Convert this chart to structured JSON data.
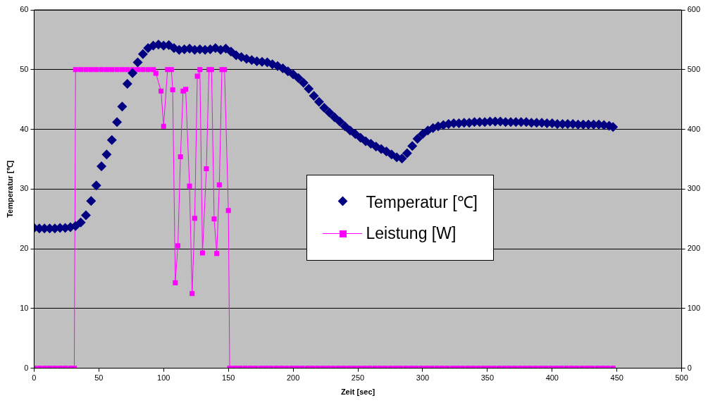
{
  "chart_data": {
    "type": "scatter",
    "xlabel": "Zeit [sec]",
    "ylabel": "Temperatur [℃]",
    "xlim": [
      0,
      500
    ],
    "xticks": [
      0,
      50,
      100,
      150,
      200,
      250,
      300,
      350,
      400,
      450,
      500
    ],
    "ylim": [
      0,
      60
    ],
    "yticks": [
      0,
      10,
      20,
      30,
      40,
      50,
      60
    ],
    "y2lim": [
      0,
      600
    ],
    "y2ticks": [
      0,
      100,
      200,
      300,
      400,
      500,
      600
    ],
    "grid": "y",
    "legend": "right",
    "series": [
      {
        "name": "Temperatur [℃]",
        "marker": "diamond",
        "color": "#000080",
        "x": [
          0,
          4,
          8,
          12,
          16,
          20,
          24,
          28,
          32,
          36,
          40,
          44,
          48,
          52,
          56,
          60,
          64,
          68,
          72,
          76,
          80,
          84,
          88,
          92,
          96,
          100,
          104,
          108,
          112,
          116,
          120,
          124,
          128,
          132,
          136,
          140,
          144,
          148,
          152,
          156,
          160,
          164,
          168,
          172,
          176,
          180,
          184,
          188,
          192,
          196,
          200,
          204,
          208,
          212,
          216,
          220,
          224,
          228,
          232,
          236,
          240,
          244,
          248,
          252,
          256,
          260,
          264,
          268,
          272,
          276,
          280,
          284,
          288,
          292,
          296,
          300,
          304,
          308,
          312,
          316,
          320,
          324,
          328,
          332,
          336,
          340,
          344,
          348,
          352,
          356,
          360,
          364,
          368,
          372,
          376,
          380,
          384,
          388,
          392,
          396,
          400,
          404,
          408,
          412,
          416,
          420,
          424,
          428,
          432,
          436,
          440,
          444,
          447
        ],
        "values": [
          23.5,
          23.4,
          23.4,
          23.4,
          23.4,
          23.5,
          23.5,
          23.6,
          23.8,
          24.4,
          25.6,
          28.0,
          30.6,
          33.8,
          35.8,
          38.2,
          41.2,
          43.8,
          47.6,
          49.4,
          51.2,
          52.6,
          53.6,
          54.0,
          54.2,
          54.0,
          54.1,
          53.6,
          53.3,
          53.4,
          53.5,
          53.3,
          53.4,
          53.3,
          53.4,
          53.6,
          53.3,
          53.5,
          53.0,
          52.4,
          52.1,
          51.8,
          51.6,
          51.4,
          51.3,
          51.2,
          50.9,
          50.6,
          50.2,
          49.7,
          49.2,
          48.6,
          47.8,
          46.8,
          45.6,
          44.6,
          43.6,
          42.8,
          42.0,
          41.3,
          40.5,
          39.8,
          39.2,
          38.6,
          38.0,
          37.6,
          37.1,
          36.7,
          36.3,
          35.8,
          35.3,
          35.1,
          36.0,
          37.2,
          38.4,
          39.2,
          39.8,
          40.2,
          40.5,
          40.7,
          40.9,
          41.0,
          41.0,
          41.1,
          41.1,
          41.2,
          41.2,
          41.2,
          41.3,
          41.3,
          41.3,
          41.2,
          41.2,
          41.2,
          41.2,
          41.2,
          41.1,
          41.1,
          41.1,
          41.0,
          41.0,
          40.9,
          40.9,
          40.9,
          40.9,
          40.8,
          40.8,
          40.8,
          40.8,
          40.8,
          40.7,
          40.6,
          40.4
        ]
      },
      {
        "name": "Leistung [W]",
        "type": "line",
        "marker": "square",
        "line_style": "solid",
        "axis": "y2",
        "color": "#ff00ff",
        "x": [
          0,
          4,
          8,
          12,
          16,
          20,
          24,
          28,
          31,
          32,
          36,
          40,
          44,
          48,
          52,
          56,
          60,
          64,
          68,
          72,
          76,
          80,
          84,
          88,
          92,
          94,
          98,
          100,
          103,
          106,
          107,
          109,
          111,
          113,
          115,
          117,
          120,
          122,
          124,
          126,
          128,
          130,
          133,
          135,
          137,
          139,
          141,
          143,
          145,
          147,
          150,
          151,
          155,
          159,
          163,
          167,
          171,
          175,
          179,
          183,
          187,
          191,
          195,
          199,
          203,
          207,
          211,
          215,
          219,
          223,
          227,
          231,
          235,
          239,
          243,
          247,
          251,
          255,
          259,
          263,
          267,
          271,
          275,
          279,
          283,
          287,
          291,
          295,
          299,
          303,
          307,
          311,
          315,
          319,
          323,
          327,
          331,
          335,
          339,
          343,
          347,
          351,
          355,
          359,
          363,
          367,
          371,
          375,
          379,
          383,
          387,
          391,
          395,
          399,
          403,
          407,
          411,
          415,
          419,
          423,
          427,
          431,
          435,
          439,
          443,
          447
        ],
        "values": [
          0,
          0,
          0,
          0,
          0,
          0,
          0,
          0,
          0,
          500,
          500,
          500,
          500,
          500,
          500,
          500,
          500,
          500,
          500,
          500,
          500,
          500,
          500,
          500,
          500,
          494,
          464,
          405,
          500,
          500,
          466,
          143,
          205,
          354,
          464,
          467,
          305,
          125,
          251,
          489,
          500,
          193,
          334,
          500,
          500,
          250,
          192,
          307,
          500,
          500,
          264,
          0,
          0,
          0,
          0,
          0,
          0,
          0,
          0,
          0,
          0,
          0,
          0,
          0,
          0,
          0,
          0,
          0,
          0,
          0,
          0,
          0,
          0,
          0,
          0,
          0,
          0,
          0,
          0,
          0,
          0,
          0,
          0,
          0,
          0,
          0,
          0,
          0,
          0,
          0,
          0,
          0,
          0,
          0,
          0,
          0,
          0,
          0,
          0,
          0,
          0,
          0,
          0,
          0,
          0,
          0,
          0,
          0,
          0,
          0,
          0,
          0,
          0,
          0,
          0,
          0,
          0,
          0,
          0,
          0,
          0,
          0,
          0,
          0,
          0,
          0
        ]
      }
    ]
  }
}
